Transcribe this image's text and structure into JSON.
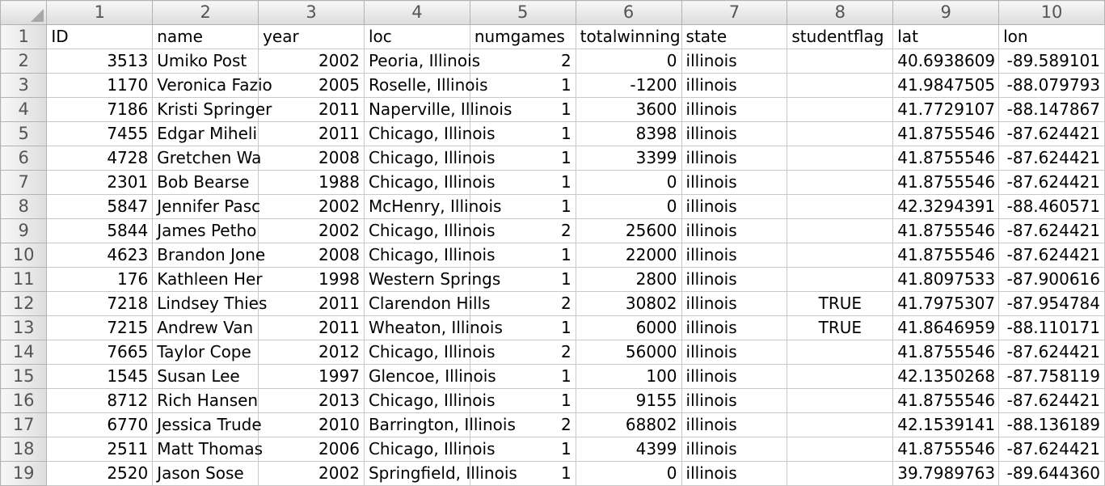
{
  "column_numbers": [
    "1",
    "2",
    "3",
    "4",
    "5",
    "6",
    "7",
    "8",
    "9",
    "10"
  ],
  "header_row": {
    "row_number": "1",
    "cells": [
      "ID",
      "name",
      "year",
      "loc",
      "numgames",
      "totalwinning",
      "state",
      "studentflag",
      "lat",
      "lon"
    ]
  },
  "rows": [
    {
      "n": "2",
      "c": [
        "3513",
        "Umiko Post",
        "2002",
        "Peoria, Illinois",
        "2",
        "0",
        "illinois",
        "",
        "40.6938609",
        "-89.589101"
      ]
    },
    {
      "n": "3",
      "c": [
        "1170",
        "Veronica Fazio",
        "2005",
        "Roselle, Illinois",
        "1",
        "-1200",
        "illinois",
        "",
        "41.9847505",
        "-88.079793"
      ]
    },
    {
      "n": "4",
      "c": [
        "7186",
        "Kristi Springer",
        "2011",
        "Naperville, Illinois",
        "1",
        "3600",
        "illinois",
        "",
        "41.7729107",
        "-88.147867"
      ]
    },
    {
      "n": "5",
      "c": [
        "7455",
        "Edgar Miheli",
        "2011",
        "Chicago, Illinois",
        "1",
        "8398",
        "illinois",
        "",
        "41.8755546",
        "-87.624421"
      ]
    },
    {
      "n": "6",
      "c": [
        "4728",
        "Gretchen Wa",
        "2008",
        "Chicago, Illinois",
        "1",
        "3399",
        "illinois",
        "",
        "41.8755546",
        "-87.624421"
      ]
    },
    {
      "n": "7",
      "c": [
        "2301",
        "Bob Bearse",
        "1988",
        "Chicago, Illinois",
        "1",
        "0",
        "illinois",
        "",
        "41.8755546",
        "-87.624421"
      ]
    },
    {
      "n": "8",
      "c": [
        "5847",
        "Jennifer Pasc",
        "2002",
        "McHenry, Illinois",
        "1",
        "0",
        "illinois",
        "",
        "42.3294391",
        "-88.460571"
      ]
    },
    {
      "n": "9",
      "c": [
        "5844",
        "James Petho",
        "2002",
        "Chicago, Illinois",
        "2",
        "25600",
        "illinois",
        "",
        "41.8755546",
        "-87.624421"
      ]
    },
    {
      "n": "10",
      "c": [
        "4623",
        "Brandon Jone",
        "2008",
        "Chicago, Illinois",
        "1",
        "22000",
        "illinois",
        "",
        "41.8755546",
        "-87.624421"
      ]
    },
    {
      "n": "11",
      "c": [
        "176",
        "Kathleen Her",
        "1998",
        "Western Springs",
        "1",
        "2800",
        "illinois",
        "",
        "41.8097533",
        "-87.900616"
      ]
    },
    {
      "n": "12",
      "c": [
        "7218",
        "Lindsey Thies",
        "2011",
        "Clarendon Hills",
        "2",
        "30802",
        "illinois",
        "TRUE",
        "41.7975307",
        "-87.954784"
      ]
    },
    {
      "n": "13",
      "c": [
        "7215",
        "Andrew Van",
        "2011",
        "Wheaton, Illinois",
        "1",
        "6000",
        "illinois",
        "TRUE",
        "41.8646959",
        "-88.110171"
      ]
    },
    {
      "n": "14",
      "c": [
        "7665",
        "Taylor Cope",
        "2012",
        "Chicago, Illinois",
        "2",
        "56000",
        "illinois",
        "",
        "41.8755546",
        "-87.624421"
      ]
    },
    {
      "n": "15",
      "c": [
        "1545",
        "Susan Lee",
        "1997",
        "Glencoe, Illinois",
        "1",
        "100",
        "illinois",
        "",
        "42.1350268",
        "-87.758119"
      ]
    },
    {
      "n": "16",
      "c": [
        "8712",
        "Rich Hansen",
        "2013",
        "Chicago, Illinois",
        "1",
        "9155",
        "illinois",
        "",
        "41.8755546",
        "-87.624421"
      ]
    },
    {
      "n": "17",
      "c": [
        "6770",
        "Jessica Trude",
        "2010",
        "Barrington, Illinois",
        "2",
        "68802",
        "illinois",
        "",
        "42.1539141",
        "-88.136189"
      ]
    },
    {
      "n": "18",
      "c": [
        "2511",
        "Matt Thomas",
        "2006",
        "Chicago, Illinois",
        "1",
        "4399",
        "illinois",
        "",
        "41.8755546",
        "-87.624421"
      ]
    },
    {
      "n": "19",
      "c": [
        "2520",
        "Jason Sose",
        "2002",
        "Springfield, Illinois",
        "1",
        "0",
        "illinois",
        "",
        "39.7989763",
        "-89.644360"
      ]
    }
  ]
}
